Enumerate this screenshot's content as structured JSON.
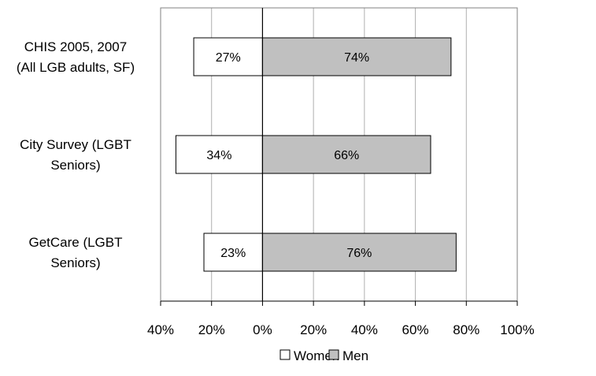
{
  "chart_data": {
    "type": "bar",
    "orientation": "horizontal",
    "stacking": "diverging",
    "categories": [
      [
        "CHIS 2005, 2007",
        "(All LGB adults, SF)"
      ],
      [
        "City Survey (LGBT",
        "Seniors)"
      ],
      [
        "GetCare (LGBT",
        "Seniors)"
      ]
    ],
    "series": [
      {
        "name": "Women",
        "direction": "left",
        "color": "#ffffff",
        "values": [
          27,
          34,
          23
        ],
        "labels": [
          "27%",
          "34%",
          "23%"
        ]
      },
      {
        "name": "Men",
        "direction": "right",
        "color": "#c0c0c0",
        "values": [
          74,
          66,
          76
        ],
        "labels": [
          "74%",
          "66%",
          "76%"
        ]
      }
    ],
    "x_ticks": [
      -40,
      -20,
      0,
      20,
      40,
      60,
      80,
      100
    ],
    "x_tick_labels": [
      "40%",
      "20%",
      "0%",
      "20%",
      "40%",
      "60%",
      "80%",
      "100%"
    ],
    "xlim": [
      -40,
      100
    ],
    "title": "",
    "xlabel": "",
    "ylabel": "",
    "grid": "vertical",
    "legend": "bottom-center",
    "colors": {
      "grid": "#b0b0b0",
      "border": "#808080",
      "bar_stroke": "#000000",
      "zero_line": "#000000"
    }
  }
}
